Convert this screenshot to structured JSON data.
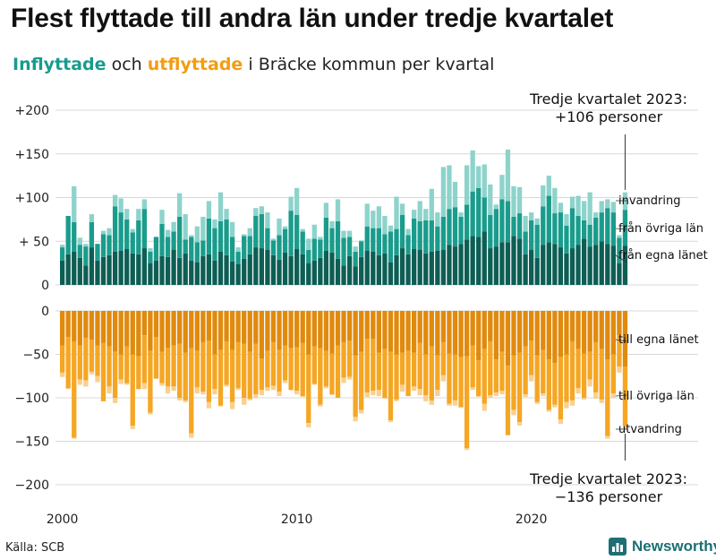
{
  "title": "Flest flyttade till andra län under tredje kvartalet",
  "subtitle": {
    "in_label": "Inflyttade",
    "och": "och",
    "out_label": "utflyttade",
    "rest": "i Bräcke kommun per kvartal"
  },
  "source": "Källa: SCB",
  "brand": "Newsworthy",
  "colors": {
    "in_egna": "#0d5e54",
    "in_ovriga": "#1a9c8c",
    "in_invandring": "#8dd3cb",
    "out_egna": "#e08a0e",
    "out_ovriga": "#f5a623",
    "out_utvandring": "#f9d08f",
    "grid": "#d8d8d8",
    "brand": "#1d6f73"
  },
  "annotations": {
    "top": [
      "Tredje kvartalet 2023:",
      "+106 personer"
    ],
    "bottom": [
      "Tredje kvartalet 2023:",
      "−136 personer"
    ]
  },
  "chart_data": {
    "type": "bar",
    "stacked": true,
    "x_start": "2000 Q1",
    "x_end": "2023 Q3",
    "x_ticks": [
      "2000",
      "2010",
      "2020"
    ],
    "y_ticks": [
      "+200",
      "+150",
      "+100",
      "+ 50",
      "0",
      "−50",
      "−100",
      "−150",
      "−200"
    ],
    "ylim_in": [
      0,
      200
    ],
    "ylim_out": [
      -200,
      0
    ],
    "grid": true,
    "series_in": [
      {
        "name": "från egna länet",
        "values": [
          28,
          35,
          38,
          31,
          22,
          43,
          28,
          32,
          34,
          38,
          39,
          41,
          36,
          35,
          42,
          25,
          28,
          33,
          32,
          40,
          31,
          36,
          28,
          26,
          33,
          35,
          28,
          38,
          34,
          27,
          24,
          30,
          35,
          43,
          42,
          40,
          34,
          29,
          37,
          33,
          41,
          35,
          25,
          28,
          31,
          39,
          37,
          30,
          22,
          33,
          21,
          32,
          39,
          38,
          34,
          36,
          26,
          34,
          42,
          35,
          41,
          40,
          36,
          38,
          39,
          40,
          46,
          44,
          47,
          52,
          56,
          55,
          61,
          42,
          44,
          49,
          49,
          56,
          53,
          35,
          40,
          31,
          46,
          49,
          47,
          43,
          36,
          42,
          46,
          53,
          44,
          46,
          50,
          47,
          45,
          25,
          45
        ]
      },
      {
        "name": "från övriga län",
        "values": [
          15,
          44,
          34,
          15,
          22,
          29,
          19,
          26,
          23,
          52,
          44,
          34,
          24,
          39,
          45,
          13,
          27,
          37,
          23,
          21,
          47,
          16,
          27,
          23,
          18,
          41,
          37,
          35,
          41,
          28,
          14,
          26,
          21,
          36,
          39,
          25,
          17,
          28,
          27,
          52,
          39,
          26,
          15,
          25,
          21,
          38,
          28,
          43,
          32,
          22,
          17,
          18,
          28,
          27,
          31,
          22,
          35,
          30,
          38,
          22,
          35,
          33,
          38,
          36,
          28,
          38,
          41,
          45,
          31,
          40,
          51,
          56,
          39,
          38,
          43,
          49,
          47,
          22,
          29,
          26,
          34,
          38,
          44,
          53,
          35,
          40,
          32,
          46,
          33,
          21,
          25,
          31,
          33,
          41,
          38,
          29,
          41
        ]
      },
      {
        "name": "invandring",
        "values": [
          3,
          0,
          41,
          8,
          3,
          9,
          0,
          4,
          8,
          13,
          16,
          12,
          4,
          13,
          11,
          4,
          0,
          16,
          8,
          11,
          27,
          29,
          2,
          18,
          27,
          20,
          10,
          33,
          12,
          17,
          5,
          2,
          9,
          9,
          9,
          18,
          2,
          19,
          3,
          16,
          31,
          3,
          13,
          16,
          3,
          17,
          8,
          25,
          8,
          7,
          6,
          1,
          26,
          20,
          25,
          21,
          7,
          37,
          13,
          7,
          10,
          23,
          13,
          36,
          16,
          57,
          50,
          29,
          5,
          45,
          47,
          25,
          38,
          35,
          5,
          28,
          59,
          35,
          30,
          18,
          9,
          7,
          24,
          23,
          29,
          11,
          13,
          13,
          23,
          22,
          37,
          6,
          13,
          10,
          12,
          3,
          20
        ]
      }
    ],
    "series_out": [
      {
        "name": "till egna länet",
        "values": [
          -40,
          -30,
          -35,
          -40,
          -31,
          -33,
          -40,
          -37,
          -41,
          -47,
          -50,
          -41,
          -50,
          -52,
          -28,
          -46,
          -30,
          -47,
          -43,
          -40,
          -38,
          -48,
          -43,
          -46,
          -36,
          -34,
          -50,
          -45,
          -35,
          -45,
          -36,
          -38,
          -47,
          -38,
          -55,
          -46,
          -36,
          -45,
          -40,
          -43,
          -42,
          -37,
          -50,
          -41,
          -43,
          -46,
          -49,
          -40,
          -36,
          -34,
          -51,
          -47,
          -32,
          -32,
          -48,
          -44,
          -47,
          -50,
          -48,
          -46,
          -48,
          -37,
          -50,
          -41,
          -51,
          -36,
          -49,
          -50,
          -53,
          -52,
          -40,
          -57,
          -44,
          -35,
          -56,
          -47,
          -63,
          -51,
          -48,
          -41,
          -34,
          -51,
          -45,
          -56,
          -60,
          -53,
          -50,
          -35,
          -44,
          -49,
          -47,
          -36,
          -44,
          -56,
          -50,
          -28,
          -64
        ]
      },
      {
        "name": "till övriga län",
        "values": [
          -31,
          -59,
          -111,
          -39,
          -49,
          -37,
          -35,
          -67,
          -46,
          -53,
          -29,
          -42,
          -82,
          -38,
          -55,
          -71,
          -48,
          -36,
          -44,
          -47,
          -62,
          -55,
          -98,
          -42,
          -57,
          -71,
          -40,
          -64,
          -50,
          -60,
          -53,
          -62,
          -54,
          -58,
          -36,
          -42,
          -50,
          -48,
          -40,
          -48,
          -50,
          -61,
          -79,
          -43,
          -65,
          -41,
          -47,
          -60,
          -41,
          -42,
          -71,
          -67,
          -62,
          -60,
          -43,
          -56,
          -79,
          -52,
          -37,
          -52,
          -39,
          -53,
          -47,
          -62,
          -40,
          -38,
          -58,
          -53,
          -58,
          -106,
          -48,
          -41,
          -63,
          -62,
          -38,
          -45,
          -80,
          -63,
          -80,
          -55,
          -40,
          -54,
          -50,
          -58,
          -48,
          -72,
          -55,
          -68,
          -45,
          -51,
          -32,
          -58,
          -58,
          -88,
          -45,
          -36,
          -68
        ]
      },
      {
        "name": "utvandring",
        "values": [
          -5,
          -1,
          -1,
          -6,
          -7,
          -3,
          -7,
          0,
          -8,
          -6,
          -5,
          -2,
          -4,
          0,
          -7,
          -2,
          0,
          -3,
          -8,
          -5,
          -3,
          -2,
          -5,
          -7,
          -3,
          -7,
          -6,
          -1,
          -2,
          -8,
          -2,
          -8,
          -2,
          -4,
          -6,
          -4,
          -5,
          -5,
          -3,
          0,
          -4,
          -1,
          -5,
          -1,
          -2,
          -2,
          -1,
          0,
          -6,
          -3,
          -5,
          -4,
          -5,
          -5,
          -7,
          -1,
          -2,
          -2,
          -8,
          0,
          -5,
          -7,
          -7,
          -5,
          -7,
          -7,
          -2,
          -6,
          0,
          -2,
          -3,
          -1,
          -8,
          -3,
          -4,
          -4,
          0,
          -6,
          -4,
          -3,
          -7,
          -2,
          -3,
          -2,
          -3,
          -5,
          -7,
          -6,
          -6,
          -2,
          -8,
          -7,
          -4,
          -3,
          -5,
          -7,
          -4
        ]
      }
    ]
  }
}
